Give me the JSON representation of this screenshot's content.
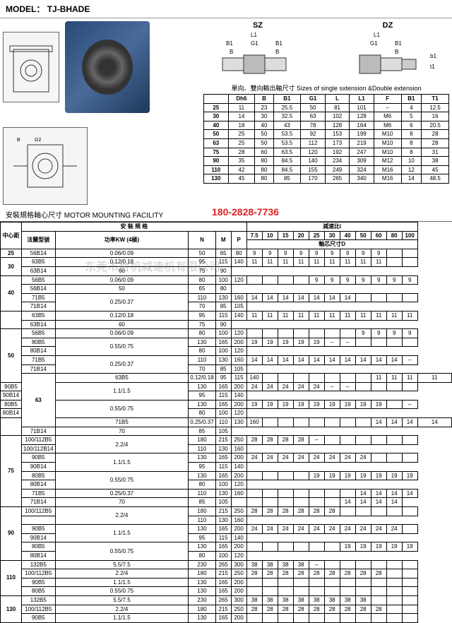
{
  "model": {
    "label": "MODEL：",
    "value": "TJ-BHADE"
  },
  "diagram_labels": {
    "sz": "SZ",
    "dz": "DZ",
    "dims": [
      "L1",
      "G1",
      "B1",
      "B",
      "b1",
      "t1"
    ]
  },
  "size_caption": "單向、雙向輸出軸尺寸  Sizes of single sxtension &Double extension",
  "size_table": {
    "headers": [
      "",
      "Dh6",
      "B",
      "B1",
      "G1",
      "L",
      "L1",
      "F",
      "B1",
      "T1"
    ],
    "rows": [
      [
        "25",
        "11",
        "23",
        "25.5",
        "50",
        "81",
        "101",
        "–",
        "4",
        "12.5"
      ],
      [
        "30",
        "14",
        "30",
        "32.5",
        "63",
        "102",
        "128",
        "M6",
        "5",
        "16"
      ],
      [
        "40",
        "18",
        "40",
        "43",
        "78",
        "128",
        "164",
        "M6",
        "6",
        "20.5"
      ],
      [
        "50",
        "25",
        "50",
        "53.5",
        "92",
        "153",
        "199",
        "M10",
        "8",
        "28"
      ],
      [
        "63",
        "25",
        "50",
        "53.5",
        "112",
        "173",
        "219",
        "M10",
        "8",
        "28"
      ],
      [
        "75",
        "28",
        "60",
        "63.5",
        "120",
        "192",
        "247",
        "M10",
        "8",
        "31"
      ],
      [
        "90",
        "35",
        "80",
        "84.5",
        "140",
        "234",
        "309",
        "M12",
        "10",
        "38"
      ],
      [
        "110",
        "42",
        "80",
        "84.5",
        "155",
        "249",
        "324",
        "M16",
        "12",
        "45"
      ],
      [
        "130",
        "45",
        "80",
        "85",
        "170",
        "265",
        "340",
        "M16",
        "14",
        "48.5"
      ]
    ]
  },
  "section_title": "安裝規格軸心尺寸  MOTOR MOUNTING FACILITY",
  "phone": "180-2828-7736",
  "watermark": "东莞市台机减速机有限公司",
  "main_headers": {
    "center": "中心距",
    "install": "安 裝 規 格",
    "ratio": "減速比i",
    "flange": "法蘭型號",
    "power": "功率KW\n(4極)",
    "nmp": [
      "N",
      "M",
      "P"
    ],
    "ratios": [
      "7.5",
      "10",
      "15",
      "20",
      "25",
      "30",
      "40",
      "50",
      "60",
      "80",
      "100"
    ],
    "shaft": "軸芯尺寸D"
  },
  "main_rows": [
    {
      "c": "25",
      "f": "56B14",
      "p": "0.06/0.09",
      "n": "50",
      "m": "65",
      "pp": "80",
      "d": [
        "9",
        "9",
        "9",
        "9",
        "9",
        "9",
        "9",
        "9",
        "9",
        "",
        ""
      ]
    },
    {
      "c": "30",
      "f": "63B5",
      "p": "0.12/0.18",
      "n": "95",
      "m": "115",
      "pp": "140",
      "d": [
        "11",
        "11",
        "11",
        "11",
        "11",
        "11",
        "11",
        "11",
        "11",
        "",
        ""
      ],
      "rs": 2
    },
    {
      "f": "63B14",
      "n": "60",
      "m": "75",
      "pp": "90"
    },
    {
      "c": "40",
      "f": "56B5",
      "p": "0.06/0.09",
      "n": "80",
      "m": "100",
      "pp": "120",
      "d": [
        "",
        "",
        "",
        "",
        "9",
        "9",
        "9",
        "9",
        "9",
        "9",
        "9"
      ],
      "rs": 4
    },
    {
      "f": "56B14",
      "n": "50",
      "m": "65",
      "pp": "80"
    },
    {
      "f": "71B5",
      "p": "0.25/0.37",
      "n": "110",
      "m": "130",
      "pp": "160",
      "d": [
        "14",
        "14",
        "14",
        "14",
        "14",
        "14",
        "14",
        "",
        "",
        "",
        ""
      ],
      "prs": 2
    },
    {
      "f": "71B14",
      "n": "70",
      "m": "85",
      "pp": "105"
    },
    {
      "c": "",
      "f": "63B5",
      "p": "0.12/0.18",
      "n": "95",
      "m": "115",
      "pp": "140",
      "d": [
        "11",
        "11",
        "11",
        "11",
        "11",
        "11",
        "11",
        "11",
        "11",
        "11",
        "11"
      ],
      "rs": 2
    },
    {
      "f": "63B14",
      "n": "60",
      "m": "75",
      "pp": "90"
    },
    {
      "c": "50",
      "f": "56B5",
      "p": "0.06/0.09",
      "n": "80",
      "m": "100",
      "pp": "120",
      "d": [
        "",
        "",
        "",
        "",
        "",
        "",
        "",
        "9",
        "9",
        "9",
        "9"
      ],
      "rs": 6
    },
    {
      "f": "80B5",
      "p": "0.55/0.75",
      "n": "130",
      "m": "165",
      "pp": "200",
      "d": [
        "19",
        "19",
        "19",
        "19",
        "19",
        "–",
        "–",
        "",
        "",
        "",
        ""
      ],
      "prs": 2
    },
    {
      "f": "80B14",
      "n": "80",
      "m": "100",
      "pp": "120"
    },
    {
      "f": "71B5",
      "p": "0.25/0.37",
      "n": "110",
      "m": "130",
      "pp": "160",
      "d": [
        "14",
        "14",
        "14",
        "14",
        "14",
        "14",
        "14",
        "14",
        "14",
        "14",
        "–"
      ],
      "prs": 2
    },
    {
      "f": "71B14",
      "n": "70",
      "m": "85",
      "pp": "105"
    },
    {
      "c": "63",
      "f": "63B5",
      "p": "0.12/0.18",
      "n": "95",
      "m": "115",
      "pp": "140",
      "d": [
        "",
        "",
        "",
        "",
        "",
        "",
        "",
        "11",
        "11",
        "11",
        "11"
      ],
      "rs": 6
    },
    {
      "f": "90B5",
      "p": "1.1/1.5",
      "n": "130",
      "m": "165",
      "pp": "200",
      "d": [
        "24",
        "24",
        "24",
        "24",
        "24",
        "–",
        "–",
        "",
        "",
        "",
        ""
      ],
      "prs": 2
    },
    {
      "f": "90B14",
      "n": "95",
      "m": "115",
      "pp": "140"
    },
    {
      "f": "80B5",
      "p": "0.55/0.75",
      "n": "130",
      "m": "165",
      "pp": "200",
      "d": [
        "19",
        "19",
        "19",
        "19",
        "19",
        "19",
        "19",
        "19",
        "19",
        "",
        "–"
      ],
      "prs": 2
    },
    {
      "f": "80B14",
      "n": "80",
      "m": "100",
      "pp": "120"
    },
    {
      "c": "",
      "f": "71B5",
      "p": "0.25/0.37",
      "n": "110",
      "m": "130",
      "pp": "160",
      "d": [
        "",
        "",
        "",
        "",
        "",
        "",
        "",
        "14",
        "14",
        "14",
        "14"
      ],
      "rs": 2
    },
    {
      "f": "71B14",
      "n": "70",
      "m": "85",
      "pp": "105"
    },
    {
      "c": "75",
      "f": "100/112B5",
      "p": "2.2/4",
      "n": "180",
      "m": "215",
      "pp": "250",
      "d": [
        "28",
        "28",
        "28",
        "28",
        "–",
        "",
        "",
        "",
        "",
        "",
        ""
      ],
      "rs": 8,
      "prs": 2
    },
    {
      "f": "100/112B14",
      "n": "110",
      "m": "130",
      "pp": "160"
    },
    {
      "f": "90B5",
      "p": "1.1/1.5",
      "n": "130",
      "m": "165",
      "pp": "200",
      "d": [
        "24",
        "24",
        "24",
        "24",
        "24",
        "24",
        "24",
        "24",
        "",
        "",
        ""
      ],
      "prs": 2
    },
    {
      "f": "90B14",
      "n": "95",
      "m": "115",
      "pp": "140"
    },
    {
      "f": "80B5",
      "p": "0.55/0.75",
      "n": "130",
      "m": "165",
      "pp": "200",
      "d": [
        "",
        "",
        "",
        "",
        "19",
        "19",
        "19",
        "19",
        "19",
        "19",
        "19"
      ],
      "prs": 2
    },
    {
      "f": "80B14",
      "n": "80",
      "m": "100",
      "pp": "120"
    },
    {
      "f": "71B5",
      "p": "0.25/0.37",
      "n": "110",
      "m": "130",
      "pp": "160",
      "d": [
        "",
        "",
        "",
        "",
        "",
        "",
        "",
        "14",
        "14",
        "14",
        "14"
      ]
    },
    {
      "f": "71B14",
      "n": "70",
      "m": "85",
      "pp": "105",
      "d": [
        "",
        "",
        "",
        "",
        "",
        "",
        "",
        "14",
        "14",
        "14",
        "14"
      ]
    },
    {
      "c": "90",
      "f": "100/112B5",
      "p": "2.2/4",
      "n": "180",
      "m": "215",
      "pp": "250",
      "d": [
        "28",
        "28",
        "28",
        "28",
        "28",
        "28",
        "",
        "",
        "",
        "",
        ""
      ],
      "rs": 6,
      "prs": 2
    },
    {
      "f": "",
      "n": "110",
      "m": "130",
      "pp": "160"
    },
    {
      "f": "90B5",
      "p": "1.1/1.5",
      "n": "130",
      "m": "165",
      "pp": "200",
      "d": [
        "24",
        "24",
        "24",
        "24",
        "24",
        "24",
        "24",
        "24",
        "24",
        "24",
        ""
      ],
      "prs": 2
    },
    {
      "f": "90B14",
      "n": "95",
      "m": "115",
      "pp": "140"
    },
    {
      "f": "80B5",
      "p": "0.55/0.75",
      "n": "130",
      "m": "165",
      "pp": "200",
      "d": [
        "",
        "",
        "",
        "",
        "",
        "",
        "19",
        "19",
        "19",
        "19",
        "19"
      ],
      "prs": 2
    },
    {
      "f": "80B14",
      "n": "80",
      "m": "100",
      "pp": "120"
    },
    {
      "c": "110",
      "f": "132B5",
      "p": "5.5/7.5",
      "n": "230",
      "m": "265",
      "pp": "300",
      "d": [
        "38",
        "38",
        "38",
        "38",
        "–",
        "",
        "",
        "",
        "",
        "",
        ""
      ],
      "rs": 4
    },
    {
      "f": "100/112B5",
      "p": "2.2/4",
      "n": "180",
      "m": "215",
      "pp": "250",
      "d": [
        "28",
        "28",
        "28",
        "28",
        "28",
        "28",
        "28",
        "28",
        "28",
        "",
        ""
      ]
    },
    {
      "f": "90B5",
      "p": "1.1/1.5",
      "n": "130",
      "m": "165",
      "pp": "200",
      "d": [
        "",
        "",
        "",
        "",
        "",
        "",
        "",
        "",
        "",
        "",
        ""
      ]
    },
    {
      "f": "80B5",
      "p": "0.55/0.75",
      "n": "130",
      "m": "165",
      "pp": "200",
      "d": [
        "",
        "",
        "",
        "",
        "",
        "",
        "",
        "",
        "",
        "",
        ""
      ]
    },
    {
      "c": "130",
      "f": "132B5",
      "p": "5.5/7.5",
      "n": "230",
      "m": "265",
      "pp": "300",
      "d": [
        "38",
        "38",
        "38",
        "38",
        "38",
        "38",
        "38",
        "38",
        "",
        "",
        ""
      ],
      "rs": 3
    },
    {
      "f": "100/112B5",
      "p": "2.2/4",
      "n": "180",
      "m": "215",
      "pp": "250",
      "d": [
        "28",
        "28",
        "28",
        "28",
        "28",
        "28",
        "28",
        "28",
        "28",
        "",
        ""
      ]
    },
    {
      "f": "90B5",
      "p": "1.1/1.5",
      "n": "130",
      "m": "165",
      "pp": "200",
      "d": [
        "",
        "",
        "",
        "",
        "",
        "",
        "",
        "",
        "",
        "",
        ""
      ]
    }
  ],
  "colors": {
    "border": "#000000",
    "phone": "#dd2222",
    "photo_blue": "#2a4a7a"
  }
}
